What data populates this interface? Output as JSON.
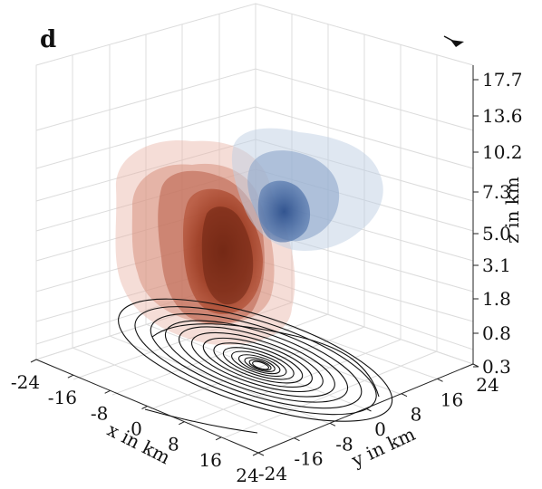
{
  "panel_label": "d",
  "chart_data": {
    "type": "3d-volume-contour",
    "title": "",
    "x_axis": {
      "label": "x in km",
      "ticks": [
        "-24",
        "-16",
        "-8",
        "0",
        "8",
        "16",
        "24"
      ]
    },
    "y_axis": {
      "label": "y in km",
      "ticks": [
        "-24",
        "-16",
        "-8",
        "0",
        "8",
        "16",
        "24"
      ]
    },
    "z_axis": {
      "label": "z in km",
      "ticks": [
        "0.3",
        "0.8",
        "1.8",
        "3.1",
        "5.0",
        "7.3",
        "10.2",
        "13.6",
        "17.7"
      ]
    },
    "grid": true,
    "colors": {
      "positive": "#a8351f",
      "negative": "#3f64a0",
      "contour": "#111111",
      "grid": "#d9d9d9"
    },
    "floor_contours": {
      "levels": 14,
      "center_km": [
        0,
        0
      ]
    },
    "marker": "north-arrow-icon"
  }
}
